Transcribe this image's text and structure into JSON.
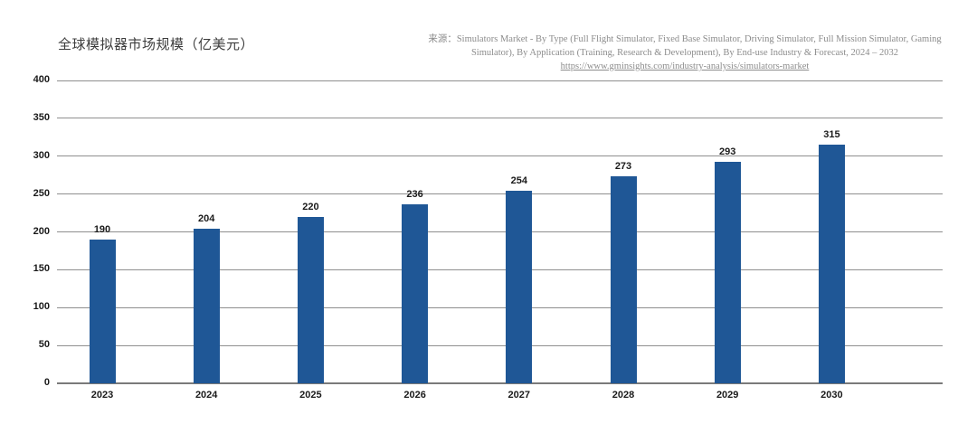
{
  "title": "全球模拟器市场规模（亿美元）",
  "source": {
    "prefix": "来源：",
    "text": "Simulators Market - By Type (Full Flight Simulator, Fixed Base Simulator, Driving Simulator, Full Mission Simulator, Gaming Simulator), By Application (Training, Research & Development), By End-use Industry & Forecast, 2024 – 2032 ",
    "link_text": "https://www.gminsights.com/industry-analysis/simulators-market"
  },
  "chart_data": {
    "type": "bar",
    "title": "全球模拟器市场规模（亿美元）",
    "categories": [
      "2023",
      "2024",
      "2025",
      "2026",
      "2027",
      "2028",
      "2029",
      "2030"
    ],
    "values": [
      190,
      204,
      220,
      236,
      254,
      273,
      293,
      315
    ],
    "xlabel": "",
    "ylabel": "",
    "ylim": [
      0,
      400
    ],
    "yticks": [
      0,
      50,
      100,
      150,
      200,
      250,
      300,
      350,
      400
    ],
    "grid": true,
    "legend": "none",
    "bar_color": "#1F5796",
    "gridline_color": "#8F8F8F",
    "axis_color": "#7A7A7A",
    "label_color": "#1A1A1A"
  }
}
